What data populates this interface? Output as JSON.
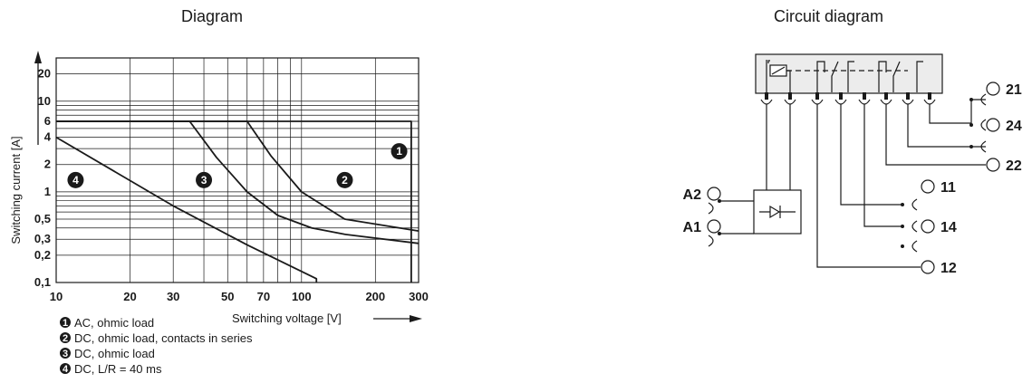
{
  "chart_data": {
    "type": "line",
    "title": "Diagram",
    "xlabel": "Switching voltage [V]",
    "ylabel": "Switching current [A]",
    "xscale": "log",
    "yscale": "log",
    "xlim": [
      10,
      300
    ],
    "ylim": [
      0.1,
      30
    ],
    "grid": true,
    "xticks": [
      "10",
      "20",
      "30",
      "50",
      "70",
      "100",
      "200",
      "300"
    ],
    "yticks": [
      "0,1",
      "0,2",
      "0,3",
      "0,5",
      "1",
      "2",
      "4",
      "6",
      "10",
      "20"
    ],
    "series": [
      {
        "id": "1",
        "name": "AC, ohmic load",
        "x": [
          10,
          280,
          280
        ],
        "y": [
          6,
          6,
          0.1
        ]
      },
      {
        "id": "2",
        "name": "DC, ohmic load, contacts in series",
        "x": [
          10,
          60,
          75,
          100,
          150,
          300
        ],
        "y": [
          6,
          6,
          2.5,
          1.0,
          0.5,
          0.37
        ]
      },
      {
        "id": "3",
        "name": "DC, ohmic load",
        "x": [
          10,
          35,
          45,
          60,
          80,
          110,
          150,
          300
        ],
        "y": [
          6,
          6,
          2.4,
          1.0,
          0.55,
          0.4,
          0.34,
          0.27
        ]
      },
      {
        "id": "4",
        "name": "DC, L/R = 40 ms",
        "x": [
          10,
          30,
          60,
          115,
          115
        ],
        "y": [
          4,
          0.7,
          0.26,
          0.11,
          0.1
        ]
      }
    ],
    "legend_position": "bottom-left"
  },
  "circuit": {
    "title": "Circuit diagram",
    "terminals": [
      "21",
      "24",
      "22",
      "11",
      "14",
      "12",
      "A2",
      "A1"
    ]
  }
}
